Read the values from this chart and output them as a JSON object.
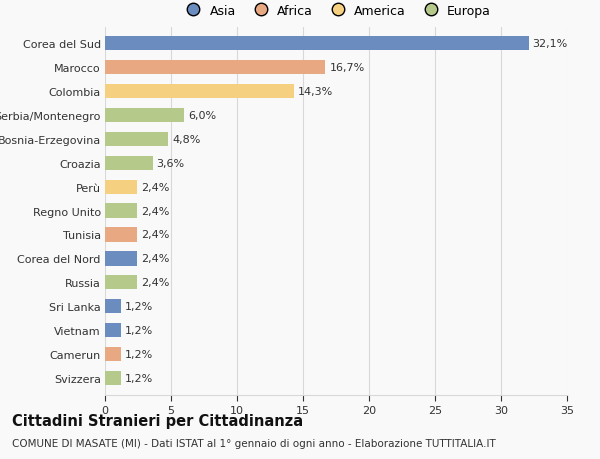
{
  "categories": [
    "Corea del Sud",
    "Marocco",
    "Colombia",
    "Serbia/Montenegro",
    "Bosnia-Erzegovina",
    "Croazia",
    "Perù",
    "Regno Unito",
    "Tunisia",
    "Corea del Nord",
    "Russia",
    "Sri Lanka",
    "Vietnam",
    "Camerun",
    "Svizzera"
  ],
  "values": [
    32.1,
    16.7,
    14.3,
    6.0,
    4.8,
    3.6,
    2.4,
    2.4,
    2.4,
    2.4,
    2.4,
    1.2,
    1.2,
    1.2,
    1.2
  ],
  "labels": [
    "32,1%",
    "16,7%",
    "14,3%",
    "6,0%",
    "4,8%",
    "3,6%",
    "2,4%",
    "2,4%",
    "2,4%",
    "2,4%",
    "2,4%",
    "1,2%",
    "1,2%",
    "1,2%",
    "1,2%"
  ],
  "colors": [
    "#6b8cbf",
    "#e8a882",
    "#f5d080",
    "#b5c98a",
    "#b5c98a",
    "#b5c98a",
    "#f5d080",
    "#b5c98a",
    "#e8a882",
    "#6b8cbf",
    "#b5c98a",
    "#6b8cbf",
    "#6b8cbf",
    "#e8a882",
    "#b5c98a"
  ],
  "legend_labels": [
    "Asia",
    "Africa",
    "America",
    "Europa"
  ],
  "legend_colors": [
    "#6b8cbf",
    "#e8a882",
    "#f5d080",
    "#b5c98a"
  ],
  "title": "Cittadini Stranieri per Cittadinanza",
  "subtitle": "COMUNE DI MASATE (MI) - Dati ISTAT al 1° gennaio di ogni anno - Elaborazione TUTTITALIA.IT",
  "xlim": [
    0,
    35
  ],
  "xticks": [
    0,
    5,
    10,
    15,
    20,
    25,
    30,
    35
  ],
  "bar_height": 0.6,
  "background_color": "#f9f9f9",
  "grid_color": "#d8d8d8",
  "text_color": "#333333",
  "label_fontsize": 8.0,
  "tick_fontsize": 8.0,
  "title_fontsize": 10.5,
  "subtitle_fontsize": 7.5,
  "legend_fontsize": 9.0
}
